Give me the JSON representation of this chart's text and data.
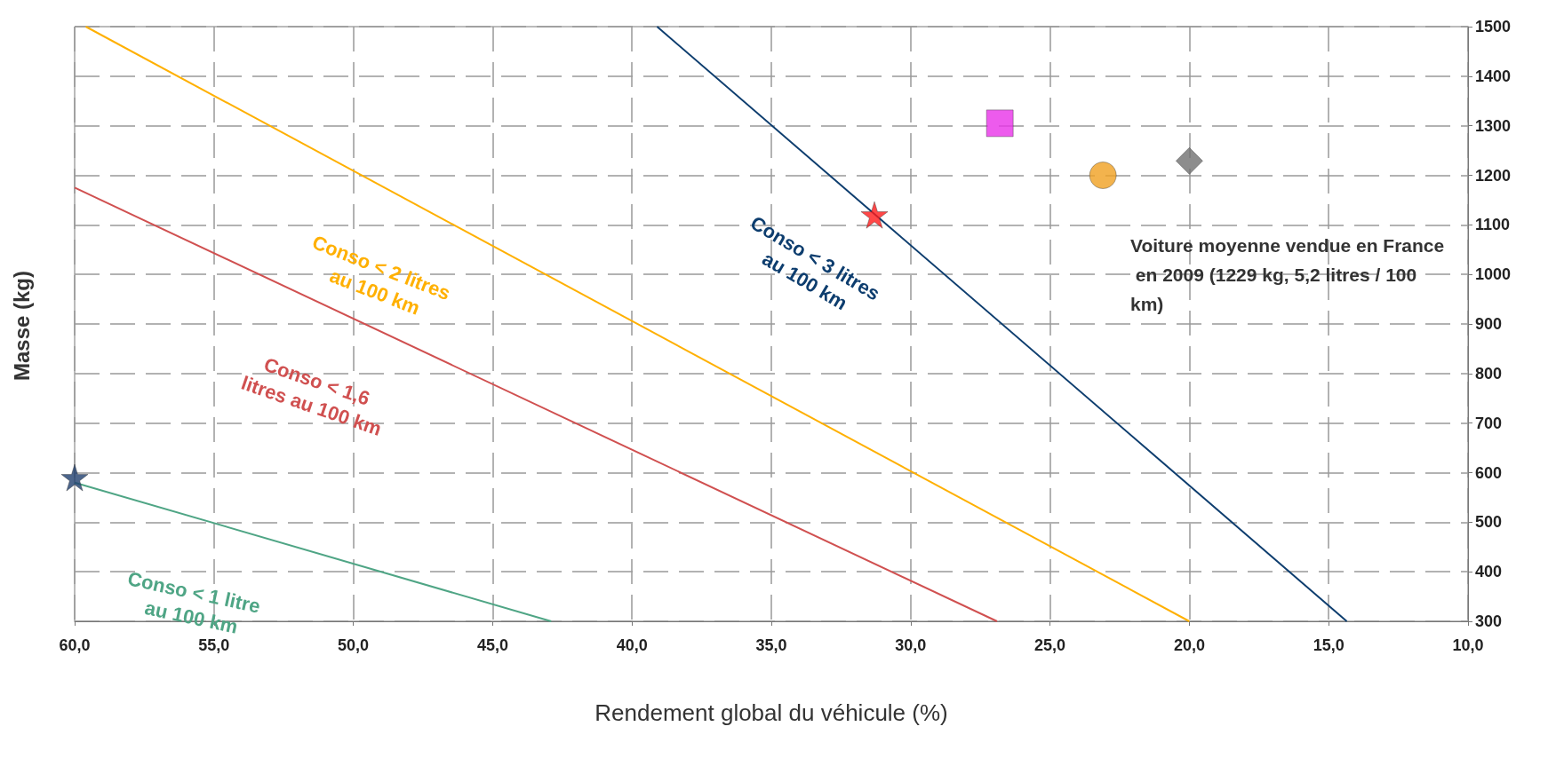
{
  "chart_data": {
    "type": "line",
    "xlabel": "Rendement global du véhicule (%)",
    "ylabel": "Masse (kg)",
    "xlim": [
      60,
      10
    ],
    "xticks": [
      {
        "value": 60,
        "label": "60,0"
      },
      {
        "value": 55,
        "label": "55,0"
      },
      {
        "value": 50,
        "label": "50,0"
      },
      {
        "value": 45,
        "label": "45,0"
      },
      {
        "value": 40,
        "label": "40,0"
      },
      {
        "value": 35,
        "label": "35,0"
      },
      {
        "value": 30,
        "label": "30,0"
      },
      {
        "value": 25,
        "label": "25,0"
      },
      {
        "value": 20,
        "label": "20,0"
      },
      {
        "value": 15,
        "label": "15,0"
      },
      {
        "value": 10,
        "label": "10,0"
      }
    ],
    "ylim": [
      300,
      1500
    ],
    "yticks": [
      300,
      400,
      500,
      600,
      700,
      800,
      900,
      1000,
      1100,
      1200,
      1300,
      1400,
      1500
    ],
    "grid": true,
    "legend": false,
    "line_style": "solid",
    "series": [
      {
        "name": "Conso < 3 litres au 100 km",
        "color": "#0d3d6e",
        "x": [
          39.1,
          14.35
        ],
        "values": [
          1500,
          300
        ]
      },
      {
        "name": "Conso < 2 litres au 100 km",
        "color": "#ffb000",
        "x": [
          59.6,
          20.0
        ],
        "values": [
          1500,
          300
        ]
      },
      {
        "name": "Conso < 1,6 litres au 100 km",
        "color": "#d05050",
        "x": [
          60,
          26.9
        ],
        "values": [
          1175,
          300
        ]
      },
      {
        "name": "Conso < 1 litre au 100 km",
        "color": "#4fa585",
        "x": [
          60,
          42.9
        ],
        "values": [
          580,
          300
        ]
      },
      {
        "type": "scatter",
        "marker": "star",
        "color": "#1f3f6e",
        "x": [
          60
        ],
        "values": [
          590
        ]
      },
      {
        "type": "scatter",
        "marker": "star",
        "color": "#ff1a1a",
        "x": [
          31.3
        ],
        "values": [
          1120
        ]
      },
      {
        "type": "scatter",
        "marker": "square",
        "color": "#e832e8",
        "x": [
          26.8
        ],
        "values": [
          1305
        ]
      },
      {
        "type": "scatter",
        "marker": "circle",
        "color": "#f0a020",
        "x": [
          23.1
        ],
        "values": [
          1200
        ]
      },
      {
        "type": "scatter",
        "marker": "diamond",
        "color": "#707070",
        "x": [
          20.0
        ],
        "values": [
          1229
        ]
      }
    ],
    "annotations": [
      "Voiture moyenne vendue en France en 2009 (1229 kg, 5,2 litres / 100 km)"
    ]
  }
}
